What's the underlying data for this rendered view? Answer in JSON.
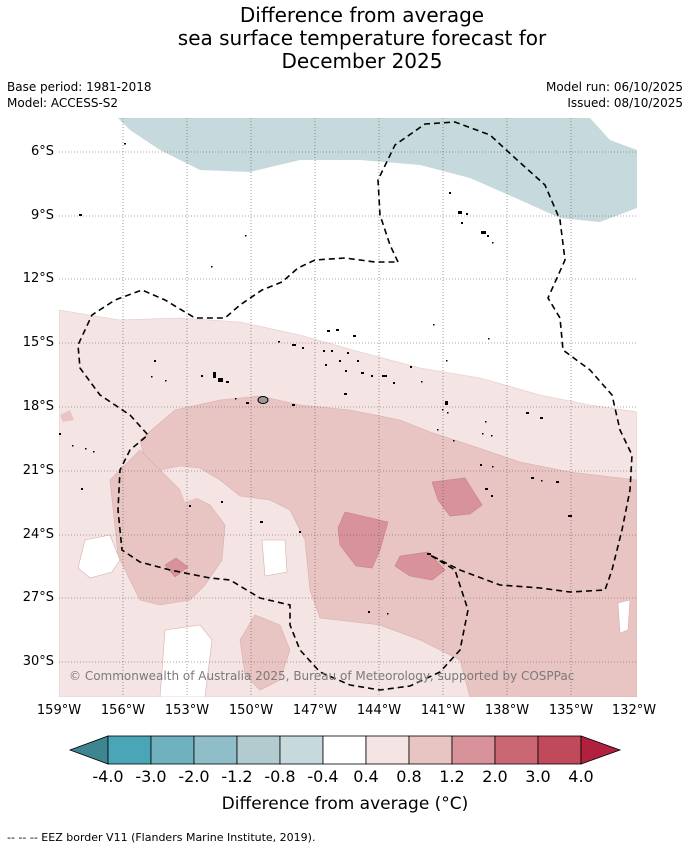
{
  "title_lines": [
    "Difference from average",
    "sea surface temperature forecast for",
    "December 2025"
  ],
  "meta": {
    "base_period": "Base period: 1981-2018",
    "model": "Model: ACCESS-S2",
    "model_run": "Model run: 06/10/2025",
    "issued": "Issued: 08/10/2025"
  },
  "map": {
    "lat_labels": [
      "6°S",
      "9°S",
      "12°S",
      "15°S",
      "18°S",
      "21°S",
      "24°S",
      "27°S",
      "30°S"
    ],
    "lon_labels": [
      "159°W",
      "156°W",
      "153°W",
      "150°W",
      "147°W",
      "144°W",
      "141°W",
      "138°W",
      "135°W",
      "132°W"
    ],
    "copyright": "© Commonwealth of Australia 2025, Bureau of Meteorology, supported by COSPPac"
  },
  "colorbar": {
    "labels": [
      "-4.0",
      "-3.0",
      "-2.0",
      "-1.2",
      "-0.8",
      "-0.4",
      "0.4",
      "0.8",
      "1.2",
      "2.0",
      "3.0",
      "4.0"
    ],
    "colors": [
      "#3e8591",
      "#4aa6b6",
      "#6fb1bf",
      "#90bec8",
      "#b1cbd0",
      "#c6d9dd",
      "#ffffff",
      "#f4e5e4",
      "#e8c5c2",
      "#d8929a",
      "#cb6773",
      "#c04a5a",
      "#b2203f"
    ],
    "title": "Difference from average (°C)"
  },
  "footer": "-- -- -- EEZ border V11 (Flanders Marine Institute, 2019)."
}
